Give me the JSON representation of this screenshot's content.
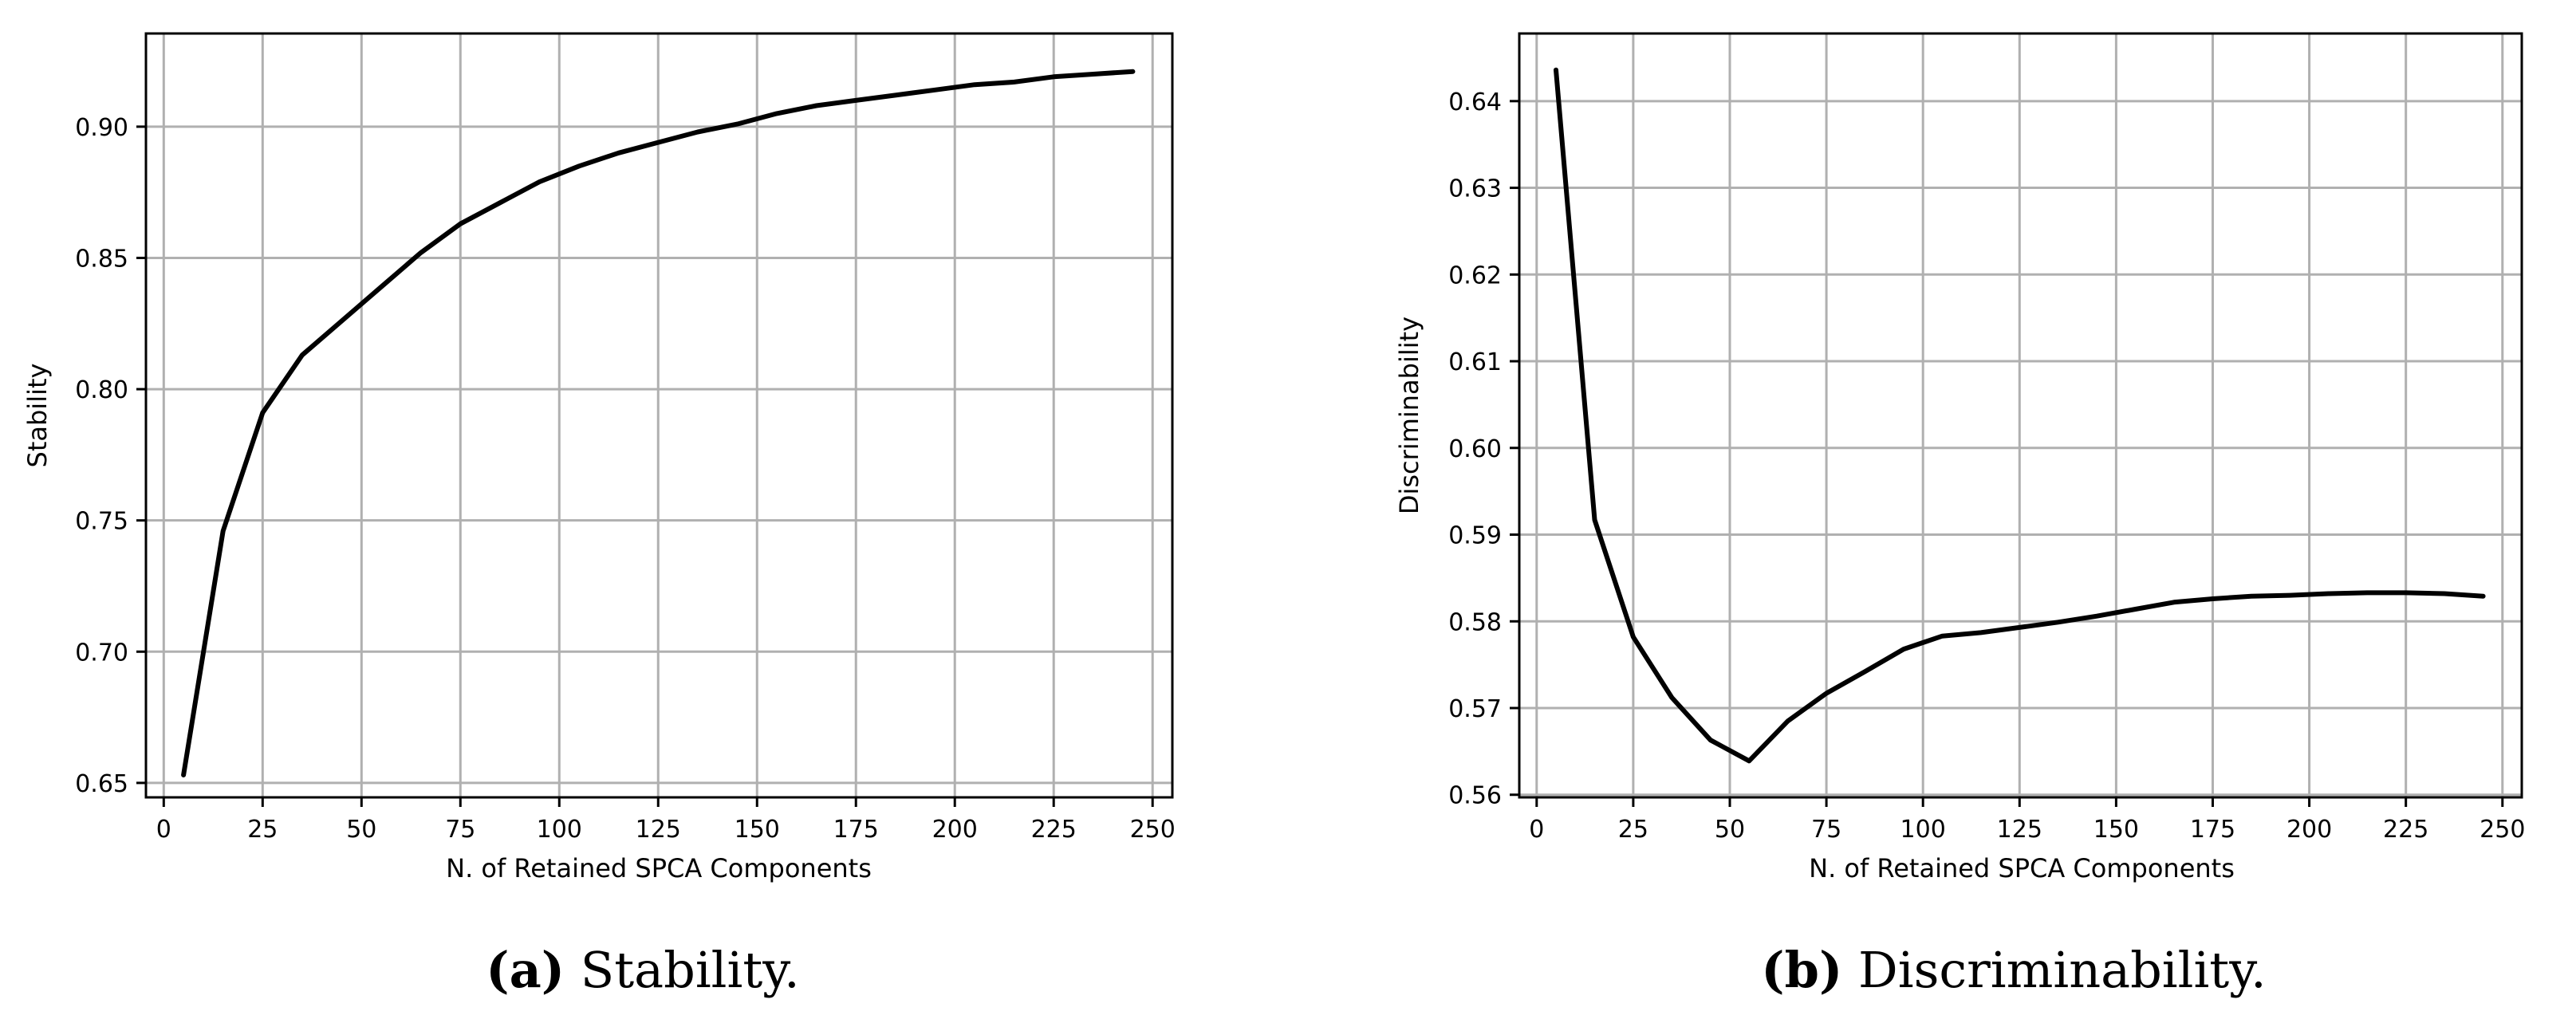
{
  "chart_data": [
    {
      "type": "line",
      "id": "stability",
      "xlabel": "N. of Retained SPCA Components",
      "ylabel": "Stability",
      "xlim": [
        -4.5,
        255
      ],
      "ylim": [
        0.6445,
        0.9355
      ],
      "xticks": [
        0,
        25,
        50,
        75,
        100,
        125,
        150,
        175,
        200,
        225,
        250
      ],
      "yticks": [
        0.65,
        0.7,
        0.75,
        0.8,
        0.85,
        0.9
      ],
      "ytick_labels": [
        "0.65",
        "0.70",
        "0.75",
        "0.80",
        "0.85",
        "0.90"
      ],
      "grid": true,
      "caption_letter": "(a)",
      "caption_text": "Stability.",
      "series": [
        {
          "name": "Stability",
          "x": [
            5,
            15,
            25,
            35,
            45,
            55,
            65,
            75,
            85,
            95,
            105,
            115,
            125,
            135,
            145,
            155,
            165,
            175,
            185,
            195,
            205,
            215,
            225,
            235,
            245
          ],
          "y": [
            0.653,
            0.746,
            0.791,
            0.813,
            0.826,
            0.839,
            0.852,
            0.863,
            0.871,
            0.879,
            0.885,
            0.89,
            0.894,
            0.898,
            0.901,
            0.905,
            0.908,
            0.91,
            0.912,
            0.914,
            0.916,
            0.917,
            0.919,
            0.92,
            0.921
          ]
        }
      ]
    },
    {
      "type": "line",
      "id": "discriminability",
      "xlabel": "N. of Retained SPCA Components",
      "ylabel": "Discriminability",
      "xlim": [
        -4.5,
        255
      ],
      "ylim": [
        0.5597,
        0.6478
      ],
      "xticks": [
        0,
        25,
        50,
        75,
        100,
        125,
        150,
        175,
        200,
        225,
        250
      ],
      "yticks": [
        0.56,
        0.57,
        0.58,
        0.59,
        0.6,
        0.61,
        0.62,
        0.63,
        0.64
      ],
      "ytick_labels": [
        "0.56",
        "0.57",
        "0.58",
        "0.59",
        "0.60",
        "0.61",
        "0.62",
        "0.63",
        "0.64"
      ],
      "grid": true,
      "caption_letter": "(b)",
      "caption_text": "Discriminability.",
      "series": [
        {
          "name": "Discriminability",
          "x": [
            5,
            15,
            25,
            35,
            45,
            55,
            65,
            75,
            85,
            95,
            105,
            115,
            125,
            135,
            145,
            155,
            165,
            175,
            185,
            195,
            205,
            215,
            225,
            235,
            245
          ],
          "y": [
            0.6436,
            0.5917,
            0.5782,
            0.5712,
            0.5663,
            0.5639,
            0.5685,
            0.5717,
            0.5742,
            0.5768,
            0.5783,
            0.5787,
            0.5793,
            0.5799,
            0.5806,
            0.5814,
            0.5822,
            0.5826,
            0.5829,
            0.583,
            0.5832,
            0.5833,
            0.5833,
            0.5832,
            0.5829
          ]
        }
      ]
    }
  ]
}
